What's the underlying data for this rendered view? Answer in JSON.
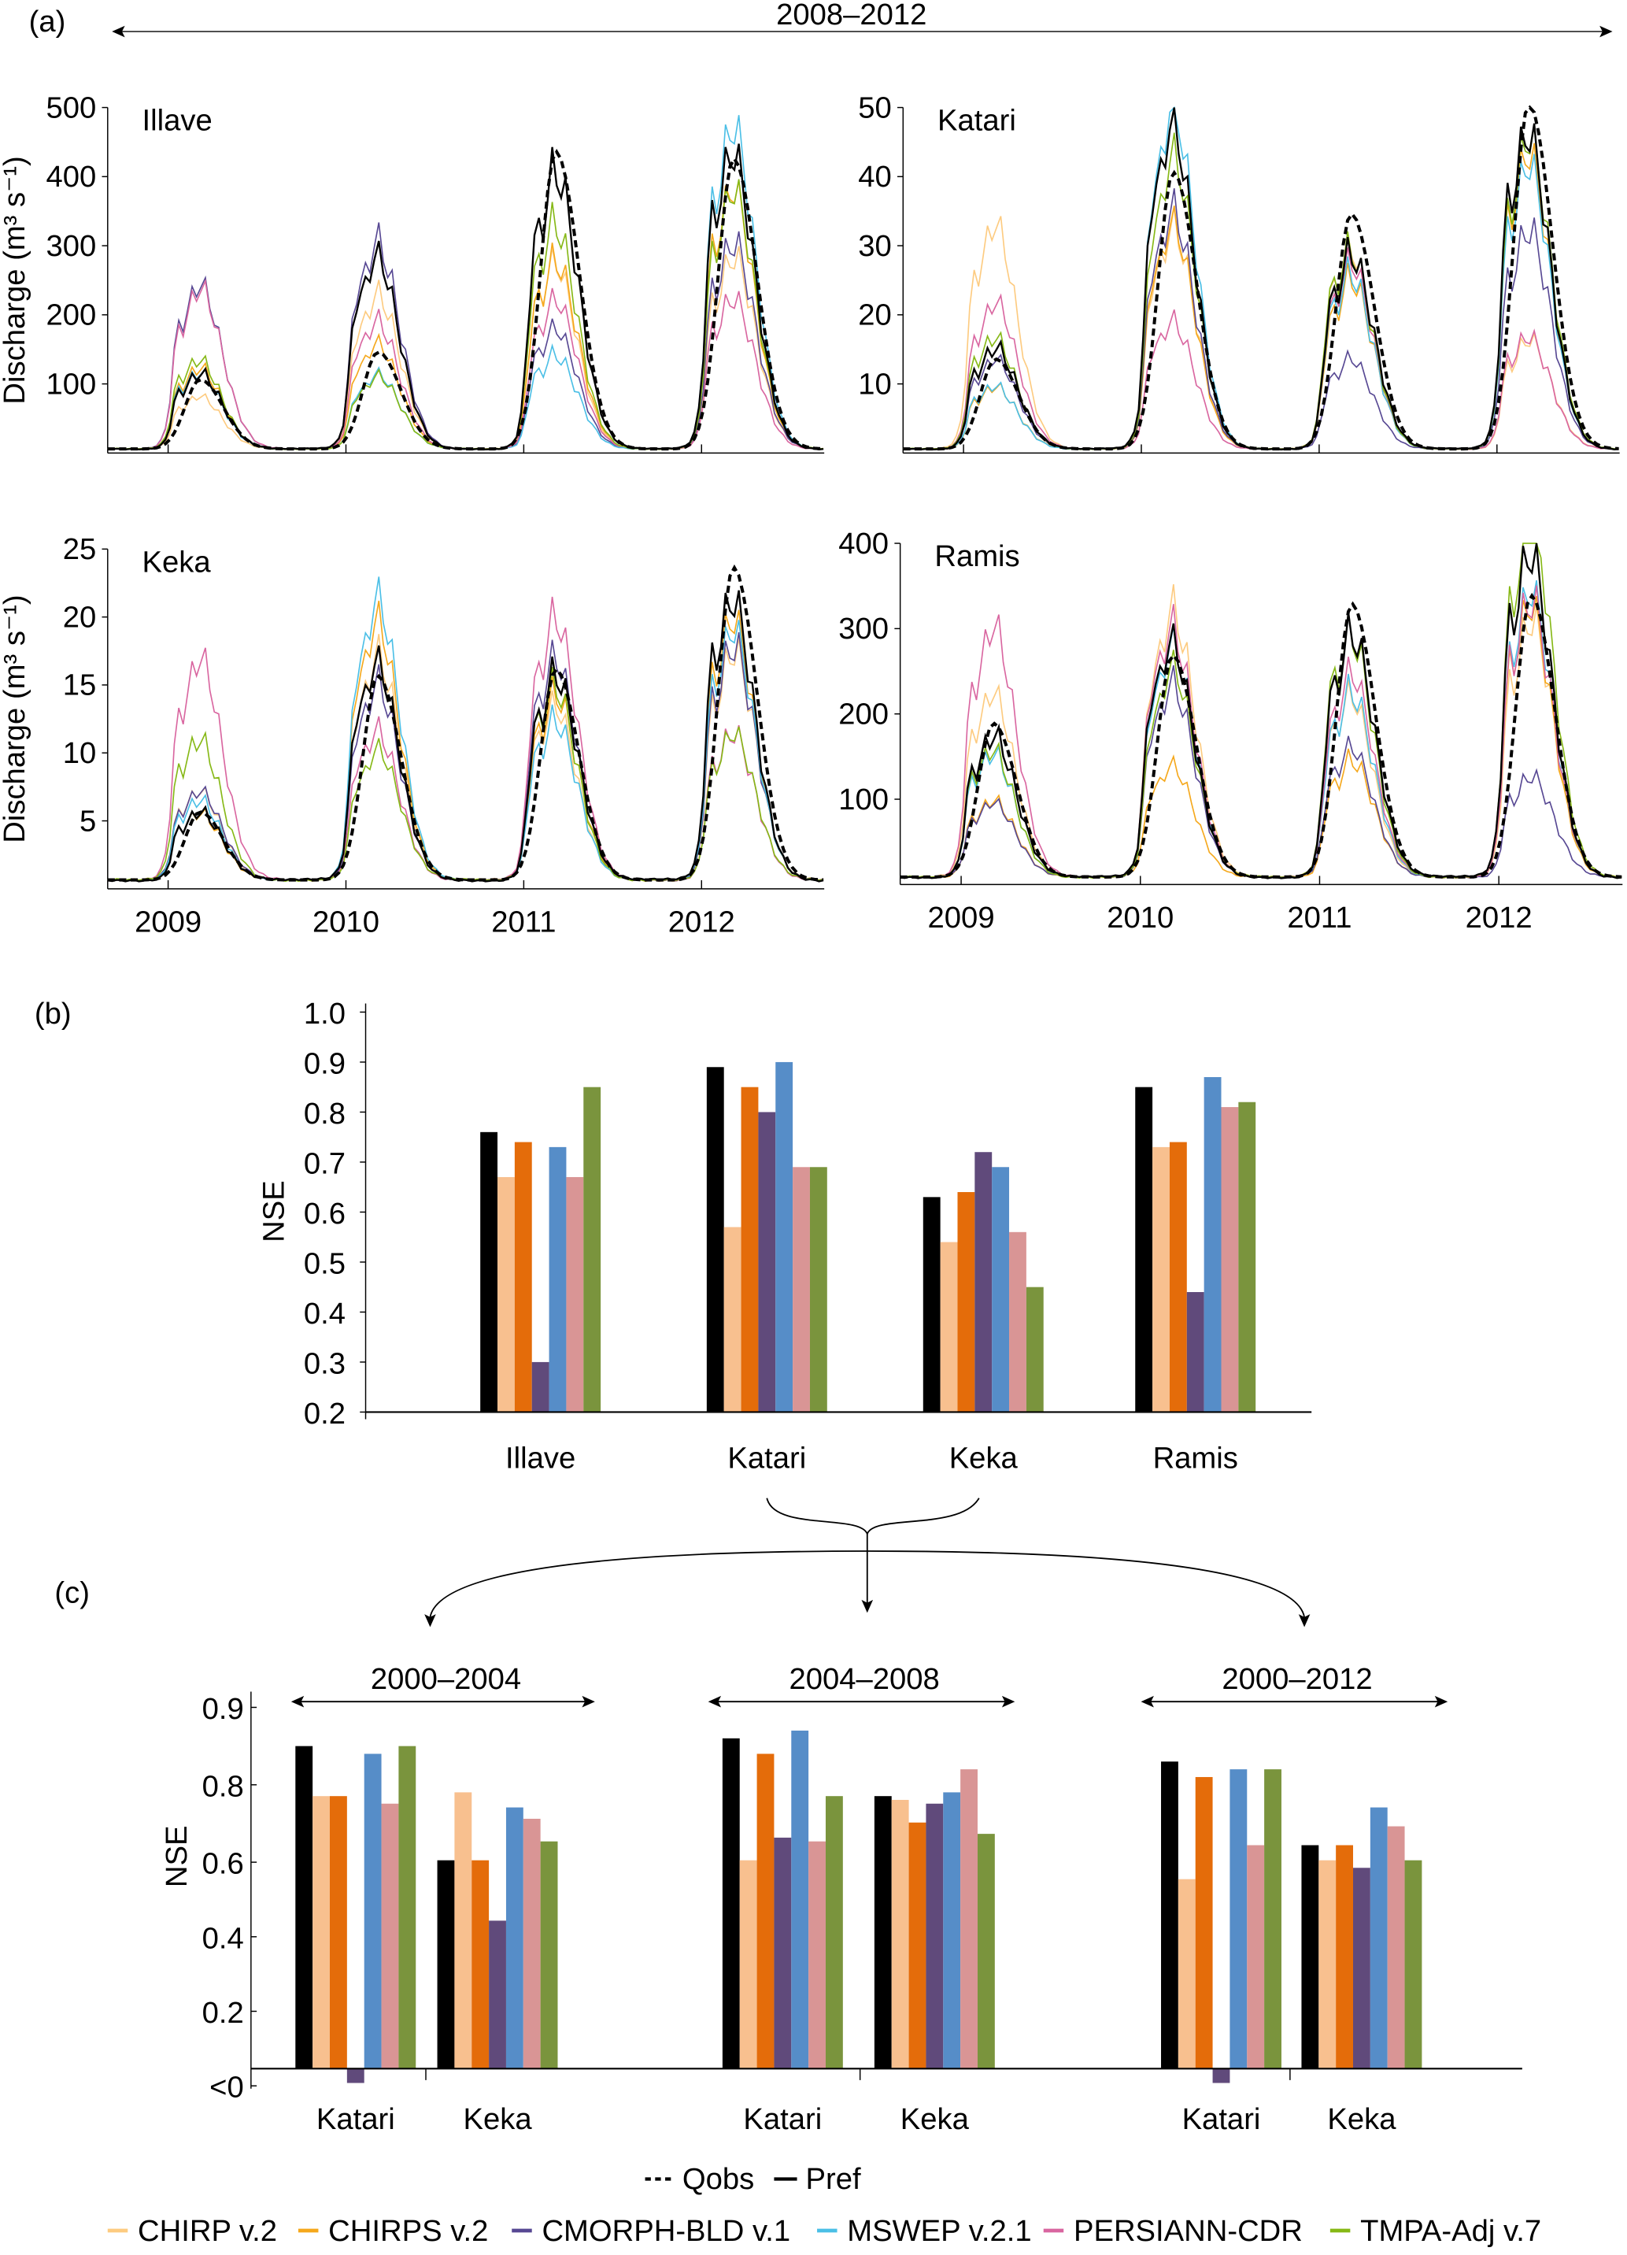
{
  "figure": {
    "panel_labels": [
      "(a)",
      "(b)",
      "(c)"
    ],
    "period_a": "2008–2012"
  },
  "legend": {
    "obs": [
      {
        "name": "Qobs",
        "color": "#000000",
        "dashed": true
      },
      {
        "name": "Pref",
        "color": "#000000",
        "dashed": false
      }
    ],
    "products": [
      {
        "name": "CHIRP v.2",
        "line_color": "#fdcb80",
        "bar_color": "#f8c08f"
      },
      {
        "name": "CHIRPS v.2",
        "line_color": "#f5a81c",
        "bar_color": "#e46c0a"
      },
      {
        "name": "CMORPH-BLD v.1",
        "line_color": "#574893",
        "bar_color": "#604a7b"
      },
      {
        "name": "MSWEP v.2.1",
        "line_color": "#4bbfe6",
        "bar_color": "#568dc8"
      },
      {
        "name": "PERSIANN-CDR",
        "line_color": "#d966a0",
        "bar_color": "#d99595"
      },
      {
        "name": "TMPA-Adj v.7",
        "line_color": "#86b816",
        "bar_color": "#7a943d"
      }
    ]
  },
  "chart_data": [
    {
      "type": "line",
      "panel": "a",
      "title": "Illave",
      "ylabel": "Discharge (m³ s⁻¹)",
      "ylim": [
        0,
        500
      ],
      "yticks": [
        "100",
        "200",
        "300",
        "400",
        "500"
      ],
      "ytick_values": [
        100,
        200,
        300,
        400,
        500
      ],
      "xticks": [],
      "xtick_values": [
        2009,
        2010,
        2011,
        2012
      ],
      "baseflow": 5,
      "series": [
        {
          "name": "Qobs",
          "peaks": [
            100,
            140,
            430,
            420
          ]
        },
        {
          "name": "Pref",
          "peaks": [
            120,
            260,
            430,
            410
          ]
        },
        {
          "name": "CHIRP v.2",
          "peaks": [
            70,
            245,
            250,
            300
          ]
        },
        {
          "name": "CHIRPS v.2",
          "peaks": [
            130,
            140,
            300,
            350
          ]
        },
        {
          "name": "CMORPH-BLD v.1",
          "peaks": [
            220,
            330,
            160,
            330
          ]
        },
        {
          "name": "MSWEP v.2.1",
          "peaks": [
            120,
            100,
            150,
            430
          ]
        },
        {
          "name": "PERSIANN-CDR",
          "peaks": [
            220,
            200,
            200,
            240
          ]
        },
        {
          "name": "TMPA-Adj v.7",
          "peaks": [
            135,
            100,
            350,
            350
          ]
        }
      ]
    },
    {
      "type": "line",
      "panel": "a",
      "title": "Katari",
      "ylabel": "",
      "ylim": [
        0,
        50
      ],
      "yticks": [
        "10",
        "20",
        "30",
        "40",
        "50"
      ],
      "ytick_values": [
        10,
        20,
        30,
        40,
        50
      ],
      "xticks": [],
      "xtick_values": [
        2009,
        2010,
        2011,
        2012
      ],
      "baseflow": 0.5,
      "series": [
        {
          "name": "Qobs",
          "peaks": [
            13,
            40,
            34,
            50
          ]
        },
        {
          "name": "Pref",
          "peaks": [
            16,
            44,
            30,
            44
          ]
        },
        {
          "name": "CHIRP v.2",
          "peaks": [
            30,
            35,
            27,
            17
          ]
        },
        {
          "name": "CHIRPS v.2",
          "peaks": [
            10,
            30,
            27,
            40
          ]
        },
        {
          "name": "CMORPH-BLD v.1",
          "peaks": [
            12,
            38,
            12,
            35
          ]
        },
        {
          "name": "MSWEP v.2.1",
          "peaks": [
            10,
            46,
            28,
            38
          ]
        },
        {
          "name": "PERSIANN-CDR",
          "peaks": [
            20,
            20,
            25,
            18
          ]
        },
        {
          "name": "TMPA-Adj v.7",
          "peaks": [
            17,
            40,
            31,
            42
          ]
        }
      ]
    },
    {
      "type": "line",
      "panel": "a",
      "title": "Keka",
      "ylabel": "Discharge (m³ s⁻¹)",
      "ylim": [
        0,
        25
      ],
      "yticks": [
        "5",
        "10",
        "15",
        "20",
        "25"
      ],
      "ytick_values": [
        5,
        10,
        15,
        20,
        25
      ],
      "xticks": [
        "2009",
        "2010",
        "2011",
        "2012"
      ],
      "xtick_values": [
        2009,
        2010,
        2011,
        2012
      ],
      "baseflow": 0.6,
      "series": [
        {
          "name": "Qobs",
          "peaks": [
            5,
            15,
            15.5,
            23
          ]
        },
        {
          "name": "Pref",
          "peaks": [
            5.5,
            15,
            16,
            20
          ]
        },
        {
          "name": "CHIRP v.2",
          "peaks": [
            6,
            18,
            12,
            18
          ]
        },
        {
          "name": "CHIRPS v.2",
          "peaks": [
            5.5,
            17.5,
            15,
            18
          ]
        },
        {
          "name": "CMORPH-BLD v.1",
          "peaks": [
            6,
            16,
            15,
            19
          ]
        },
        {
          "name": "MSWEP v.2.1",
          "peaks": [
            6.5,
            19,
            13,
            17
          ]
        },
        {
          "name": "PERSIANN-CDR",
          "peaks": [
            15.3,
            12,
            17.8,
            12
          ]
        },
        {
          "name": "TMPA-Adj v.7",
          "peaks": [
            11,
            9,
            15.5,
            10
          ]
        }
      ]
    },
    {
      "type": "line",
      "panel": "a",
      "title": "Ramis",
      "ylabel": "",
      "ylim": [
        0,
        400
      ],
      "yticks": [
        "100",
        "200",
        "300",
        "400"
      ],
      "ytick_values": [
        100,
        200,
        300,
        400
      ],
      "xticks": [
        "2009",
        "2010",
        "2011",
        "2012"
      ],
      "xtick_values": [
        2009,
        2010,
        2011,
        2012
      ],
      "baseflow": 8,
      "series": [
        {
          "name": "Qobs",
          "peaks": [
            180,
            260,
            320,
            330
          ]
        },
        {
          "name": "Pref",
          "peaks": [
            180,
            260,
            300,
            370
          ]
        },
        {
          "name": "CHIRP v.2",
          "peaks": [
            200,
            340,
            200,
            320
          ]
        },
        {
          "name": "CHIRPS v.2",
          "peaks": [
            100,
            120,
            150,
            300
          ]
        },
        {
          "name": "CMORPH-BLD v.1",
          "peaks": [
            80,
            250,
            140,
            130
          ]
        },
        {
          "name": "MSWEP v.2.1",
          "peaks": [
            160,
            250,
            240,
            310
          ]
        },
        {
          "name": "PERSIANN-CDR",
          "peaks": [
            275,
            320,
            220,
            360
          ]
        },
        {
          "name": "TMPA-Adj v.7",
          "peaks": [
            160,
            230,
            310,
            390
          ]
        }
      ]
    },
    {
      "type": "bar",
      "panel": "b",
      "ylabel": "NSE",
      "ylim": [
        0.2,
        1.0
      ],
      "yticks": [
        "1.0",
        "0.9",
        "0.8",
        "0.7",
        "0.6",
        "0.5",
        "0.4",
        "0.3",
        "0.2"
      ],
      "ytick_values": [
        1.0,
        0.9,
        0.8,
        0.7,
        0.6,
        0.5,
        0.4,
        0.3,
        0.2
      ],
      "categories": [
        "Illave",
        "Katari",
        "Keka",
        "Ramis"
      ],
      "series": [
        {
          "name": "Pref",
          "values": [
            0.76,
            0.89,
            0.63,
            0.85
          ]
        },
        {
          "name": "CHIRP v.2",
          "values": [
            0.67,
            0.57,
            0.54,
            0.73
          ]
        },
        {
          "name": "CHIRPS v.2",
          "values": [
            0.74,
            0.85,
            0.64,
            0.74
          ]
        },
        {
          "name": "CMORPH-BLD v.1",
          "values": [
            0.3,
            0.8,
            0.72,
            0.44
          ]
        },
        {
          "name": "MSWEP v.2.1",
          "values": [
            0.73,
            0.9,
            0.69,
            0.87
          ]
        },
        {
          "name": "PERSIANN-CDR",
          "values": [
            0.67,
            0.69,
            0.56,
            0.81
          ]
        },
        {
          "name": "TMPA-Adj v.7",
          "values": [
            0.85,
            0.69,
            0.45,
            0.82
          ]
        }
      ]
    },
    {
      "type": "bar",
      "panel": "c",
      "ylabel": "NSE",
      "yticks": [
        "0.9",
        "0.8",
        "0.6",
        "0.4",
        "0.2",
        "<0"
      ],
      "ytick_values": [
        0.9,
        0.8,
        0.6,
        0.4,
        0.2,
        "<0"
      ],
      "periods": [
        {
          "label": "2000–2004",
          "categories": [
            "Katari",
            "Keka"
          ],
          "series": [
            {
              "name": "Pref",
              "values": [
                0.85,
                0.6
              ]
            },
            {
              "name": "CHIRP v.2",
              "values": [
                0.77,
                0.78
              ]
            },
            {
              "name": "CHIRPS v.2",
              "values": [
                0.77,
                0.6
              ]
            },
            {
              "name": "CMORPH-BLD v.1",
              "values": [
                "<0",
                0.44
              ]
            },
            {
              "name": "MSWEP v.2.1",
              "values": [
                0.84,
                0.74
              ]
            },
            {
              "name": "PERSIANN-CDR",
              "values": [
                0.75,
                0.71
              ]
            },
            {
              "name": "TMPA-Adj v.7",
              "values": [
                0.85,
                0.65
              ]
            }
          ]
        },
        {
          "label": "2004–2008",
          "categories": [
            "Katari",
            "Keka"
          ],
          "series": [
            {
              "name": "Pref",
              "values": [
                0.86,
                0.77
              ]
            },
            {
              "name": "CHIRP v.2",
              "values": [
                0.6,
                0.76
              ]
            },
            {
              "name": "CHIRPS v.2",
              "values": [
                0.84,
                0.7
              ]
            },
            {
              "name": "CMORPH-BLD v.1",
              "values": [
                0.66,
                0.75
              ]
            },
            {
              "name": "MSWEP v.2.1",
              "values": [
                0.87,
                0.78
              ]
            },
            {
              "name": "PERSIANN-CDR",
              "values": [
                0.65,
                0.82
              ]
            },
            {
              "name": "TMPA-Adj v.7",
              "values": [
                0.77,
                0.67
              ]
            }
          ]
        },
        {
          "label": "2000–2012",
          "categories": [
            "Katari",
            "Keka"
          ],
          "series": [
            {
              "name": "Pref",
              "values": [
                0.83,
                0.64
              ]
            },
            {
              "name": "CHIRP v.2",
              "values": [
                0.55,
                0.6
              ]
            },
            {
              "name": "CHIRPS v.2",
              "values": [
                0.81,
                0.64
              ]
            },
            {
              "name": "CMORPH-BLD v.1",
              "values": [
                "<0",
                0.58
              ]
            },
            {
              "name": "MSWEP v.2.1",
              "values": [
                0.82,
                0.74
              ]
            },
            {
              "name": "PERSIANN-CDR",
              "values": [
                0.64,
                0.69
              ]
            },
            {
              "name": "TMPA-Adj v.7",
              "values": [
                0.82,
                0.6
              ]
            }
          ]
        }
      ]
    }
  ]
}
